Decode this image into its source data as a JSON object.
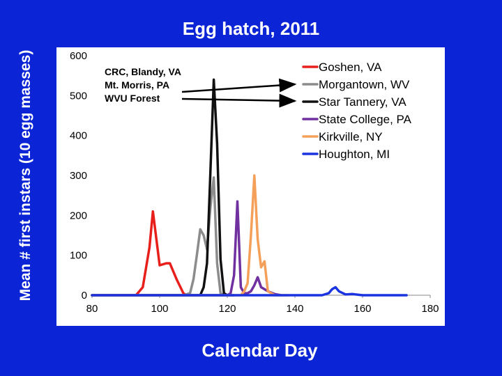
{
  "slide_title": "Egg hatch, 2011",
  "chart_data": {
    "type": "line",
    "title": "Egg hatch, 2011",
    "xlabel": "Calendar Day",
    "ylabel": "Mean # first instars (10 egg masses)",
    "xlim": [
      80,
      180
    ],
    "ylim": [
      0,
      600
    ],
    "xticks": [
      80,
      100,
      120,
      140,
      160,
      180
    ],
    "yticks": [
      0,
      100,
      200,
      300,
      400,
      500,
      600
    ],
    "grid": false,
    "legend_position": "top-right",
    "annotation": {
      "lines": [
        "CRC, Blandy, VA",
        "Mt. Morris, PA",
        "WVU Forest"
      ],
      "arrow_targets": [
        "Morgantown, WV",
        "Star Tannery, VA"
      ]
    },
    "series": [
      {
        "name": "Goshen, VA",
        "color": "#e8201c",
        "x": [
          80,
          93,
          95,
          97,
          98,
          100,
          102,
          103,
          105,
          107,
          108,
          110,
          112
        ],
        "y": [
          0,
          0,
          20,
          120,
          210,
          75,
          80,
          80,
          40,
          5,
          0,
          0,
          0
        ]
      },
      {
        "name": "Morgantown, WV",
        "color": "#8c8c8c",
        "x": [
          80,
          107,
          109,
          110,
          111,
          112,
          113,
          114,
          115,
          116,
          117,
          118,
          119
        ],
        "y": [
          0,
          0,
          5,
          40,
          100,
          165,
          150,
          115,
          220,
          295,
          80,
          5,
          0
        ]
      },
      {
        "name": "Star Tannery, VA",
        "color": "#111111",
        "x": [
          80,
          112,
          113,
          114,
          115,
          116,
          117,
          118,
          119,
          120,
          121,
          122
        ],
        "y": [
          0,
          0,
          20,
          80,
          310,
          540,
          380,
          90,
          5,
          0,
          0,
          0
        ]
      },
      {
        "name": "State College, PA",
        "color": "#7030a0",
        "x": [
          80,
          117,
          120,
          121,
          122,
          123,
          124,
          125,
          126,
          127,
          128,
          129,
          130,
          131,
          132,
          134,
          136
        ],
        "y": [
          0,
          0,
          0,
          5,
          50,
          235,
          20,
          5,
          5,
          10,
          25,
          45,
          20,
          15,
          10,
          3,
          0
        ]
      },
      {
        "name": "Kirkville, NY",
        "color": "#f5a05a",
        "x": [
          80,
          124,
          125,
          126,
          127,
          128,
          129,
          130,
          131,
          132,
          134,
          136,
          138
        ],
        "y": [
          0,
          0,
          10,
          30,
          150,
          300,
          140,
          70,
          85,
          10,
          0,
          0,
          0
        ]
      },
      {
        "name": "Houghton, MI",
        "color": "#1a35e0",
        "x": [
          80,
          120,
          130,
          140,
          148,
          150,
          151,
          152,
          153,
          155,
          157,
          160,
          165,
          170,
          173
        ],
        "y": [
          0,
          0,
          0,
          0,
          0,
          5,
          15,
          20,
          10,
          2,
          3,
          0,
          0,
          0,
          0
        ]
      }
    ]
  }
}
